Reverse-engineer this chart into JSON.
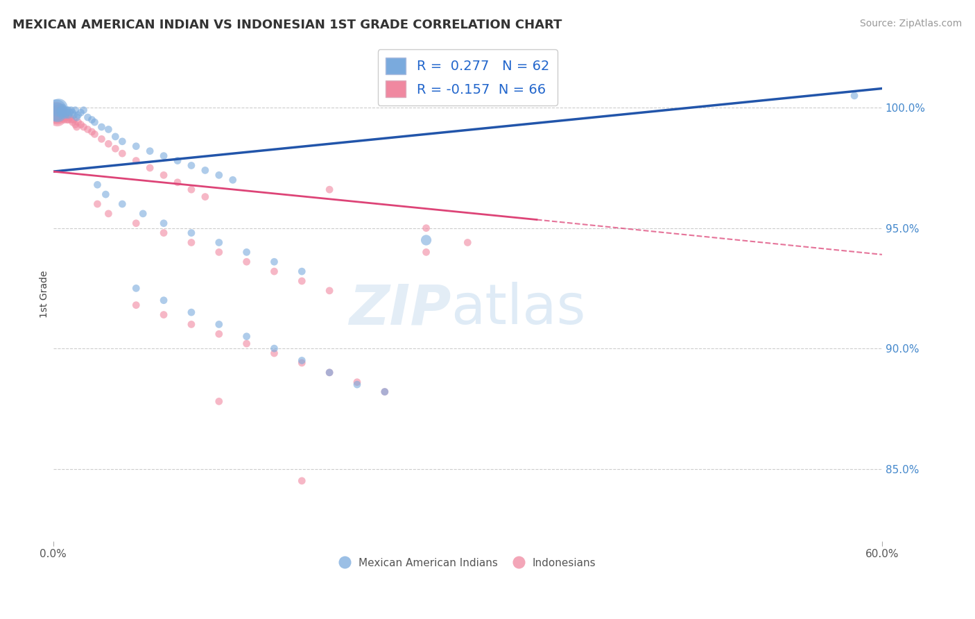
{
  "title": "MEXICAN AMERICAN INDIAN VS INDONESIAN 1ST GRADE CORRELATION CHART",
  "source_text": "Source: ZipAtlas.com",
  "ylabel": "1st Grade",
  "xlim": [
    0.0,
    0.6
  ],
  "ylim": [
    0.82,
    1.025
  ],
  "yticks": [
    0.85,
    0.9,
    0.95,
    1.0
  ],
  "ytick_labels": [
    "85.0%",
    "90.0%",
    "95.0%",
    "100.0%"
  ],
  "xtick_labels": [
    "0.0%",
    "60.0%"
  ],
  "blue_R": 0.277,
  "blue_N": 62,
  "pink_R": -0.157,
  "pink_N": 66,
  "blue_color": "#7aaadd",
  "pink_color": "#f088a0",
  "blue_line_color": "#2255aa",
  "pink_line_color": "#dd4477",
  "legend_label_blue": "Mexican American Indians",
  "legend_label_pink": "Indonesians",
  "background_color": "#ffffff",
  "blue_line": [
    [
      0.0,
      0.9735
    ],
    [
      0.6,
      1.008
    ]
  ],
  "pink_line_solid": [
    [
      0.0,
      0.9735
    ],
    [
      0.35,
      0.9535
    ]
  ],
  "pink_line_dash": [
    [
      0.35,
      0.9535
    ],
    [
      0.6,
      0.939
    ]
  ],
  "blue_pts": [
    [
      0.002,
      0.999
    ],
    [
      0.003,
      0.998
    ],
    [
      0.004,
      1.0
    ],
    [
      0.005,
      0.998
    ],
    [
      0.005,
      0.999
    ],
    [
      0.006,
      0.999
    ],
    [
      0.006,
      0.997
    ],
    [
      0.007,
      0.998
    ],
    [
      0.007,
      1.0
    ],
    [
      0.008,
      0.999
    ],
    [
      0.008,
      0.998
    ],
    [
      0.009,
      0.997
    ],
    [
      0.01,
      0.999
    ],
    [
      0.01,
      0.998
    ],
    [
      0.011,
      0.999
    ],
    [
      0.011,
      0.997
    ],
    [
      0.012,
      0.998
    ],
    [
      0.013,
      0.999
    ],
    [
      0.014,
      0.998
    ],
    [
      0.015,
      0.997
    ],
    [
      0.016,
      0.999
    ],
    [
      0.017,
      0.996
    ],
    [
      0.018,
      0.997
    ],
    [
      0.02,
      0.998
    ],
    [
      0.022,
      0.999
    ],
    [
      0.025,
      0.996
    ],
    [
      0.028,
      0.995
    ],
    [
      0.03,
      0.994
    ],
    [
      0.035,
      0.992
    ],
    [
      0.04,
      0.991
    ],
    [
      0.045,
      0.988
    ],
    [
      0.05,
      0.986
    ],
    [
      0.06,
      0.984
    ],
    [
      0.07,
      0.982
    ],
    [
      0.08,
      0.98
    ],
    [
      0.09,
      0.978
    ],
    [
      0.1,
      0.976
    ],
    [
      0.11,
      0.974
    ],
    [
      0.12,
      0.972
    ],
    [
      0.13,
      0.97
    ],
    [
      0.032,
      0.968
    ],
    [
      0.038,
      0.964
    ],
    [
      0.05,
      0.96
    ],
    [
      0.065,
      0.956
    ],
    [
      0.08,
      0.952
    ],
    [
      0.1,
      0.948
    ],
    [
      0.12,
      0.944
    ],
    [
      0.14,
      0.94
    ],
    [
      0.16,
      0.936
    ],
    [
      0.18,
      0.932
    ],
    [
      0.06,
      0.925
    ],
    [
      0.08,
      0.92
    ],
    [
      0.1,
      0.915
    ],
    [
      0.12,
      0.91
    ],
    [
      0.14,
      0.905
    ],
    [
      0.16,
      0.9
    ],
    [
      0.18,
      0.895
    ],
    [
      0.2,
      0.89
    ],
    [
      0.22,
      0.885
    ],
    [
      0.24,
      0.882
    ],
    [
      0.27,
      0.945
    ],
    [
      0.58,
      1.005
    ]
  ],
  "pink_pts": [
    [
      0.002,
      0.998
    ],
    [
      0.003,
      0.997
    ],
    [
      0.003,
      0.996
    ],
    [
      0.004,
      0.998
    ],
    [
      0.004,
      0.997
    ],
    [
      0.005,
      0.997
    ],
    [
      0.005,
      0.996
    ],
    [
      0.006,
      0.997
    ],
    [
      0.006,
      0.996
    ],
    [
      0.007,
      0.998
    ],
    [
      0.007,
      0.997
    ],
    [
      0.008,
      0.996
    ],
    [
      0.008,
      0.995
    ],
    [
      0.009,
      0.997
    ],
    [
      0.009,
      0.996
    ],
    [
      0.01,
      0.996
    ],
    [
      0.01,
      0.995
    ],
    [
      0.011,
      0.995
    ],
    [
      0.012,
      0.996
    ],
    [
      0.013,
      0.995
    ],
    [
      0.014,
      0.994
    ],
    [
      0.015,
      0.995
    ],
    [
      0.016,
      0.993
    ],
    [
      0.017,
      0.992
    ],
    [
      0.018,
      0.994
    ],
    [
      0.02,
      0.993
    ],
    [
      0.022,
      0.992
    ],
    [
      0.025,
      0.991
    ],
    [
      0.028,
      0.99
    ],
    [
      0.03,
      0.989
    ],
    [
      0.035,
      0.987
    ],
    [
      0.04,
      0.985
    ],
    [
      0.045,
      0.983
    ],
    [
      0.05,
      0.981
    ],
    [
      0.06,
      0.978
    ],
    [
      0.07,
      0.975
    ],
    [
      0.08,
      0.972
    ],
    [
      0.09,
      0.969
    ],
    [
      0.1,
      0.966
    ],
    [
      0.11,
      0.963
    ],
    [
      0.032,
      0.96
    ],
    [
      0.04,
      0.956
    ],
    [
      0.06,
      0.952
    ],
    [
      0.08,
      0.948
    ],
    [
      0.1,
      0.944
    ],
    [
      0.12,
      0.94
    ],
    [
      0.14,
      0.936
    ],
    [
      0.16,
      0.932
    ],
    [
      0.18,
      0.928
    ],
    [
      0.2,
      0.924
    ],
    [
      0.06,
      0.918
    ],
    [
      0.08,
      0.914
    ],
    [
      0.1,
      0.91
    ],
    [
      0.12,
      0.906
    ],
    [
      0.14,
      0.902
    ],
    [
      0.16,
      0.898
    ],
    [
      0.18,
      0.894
    ],
    [
      0.2,
      0.89
    ],
    [
      0.22,
      0.886
    ],
    [
      0.24,
      0.882
    ],
    [
      0.27,
      0.95
    ],
    [
      0.2,
      0.966
    ],
    [
      0.3,
      0.944
    ],
    [
      0.27,
      0.94
    ],
    [
      0.18,
      0.845
    ],
    [
      0.12,
      0.878
    ]
  ],
  "blue_sizes": [
    500,
    400,
    350,
    60,
    60,
    60,
    60,
    60,
    60,
    60,
    60,
    60,
    60,
    60,
    60,
    60,
    60,
    60,
    60,
    60,
    60,
    60,
    60,
    60,
    60,
    60,
    60,
    60,
    60,
    60,
    60,
    60,
    60,
    60,
    60,
    60,
    60,
    60,
    60,
    60,
    60,
    60,
    60,
    60,
    60,
    60,
    60,
    60,
    60,
    60,
    60,
    60,
    60,
    60,
    60,
    60,
    60,
    60,
    60,
    60,
    120,
    60
  ],
  "pink_sizes": [
    500,
    400,
    350,
    300,
    250,
    60,
    60,
    60,
    60,
    60,
    60,
    60,
    60,
    60,
    60,
    60,
    60,
    60,
    60,
    60,
    60,
    60,
    60,
    60,
    60,
    60,
    60,
    60,
    60,
    60,
    60,
    60,
    60,
    60,
    60,
    60,
    60,
    60,
    60,
    60,
    60,
    60,
    60,
    60,
    60,
    60,
    60,
    60,
    60,
    60,
    60,
    60,
    60,
    60,
    60,
    60,
    60,
    60,
    60,
    60,
    60,
    60,
    60,
    60,
    60,
    60
  ]
}
